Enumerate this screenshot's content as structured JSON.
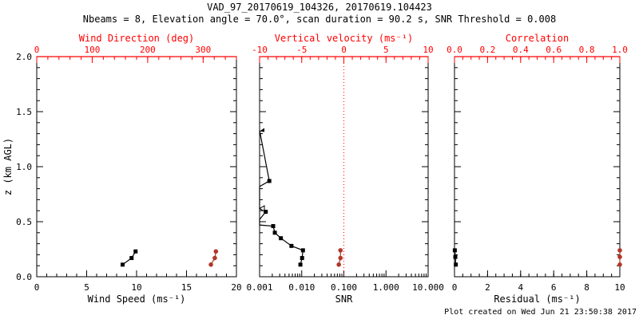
{
  "header": {
    "title": "VAD_97_20170619_104326, 20170619.104423",
    "subtitle": "Nbeams = 8, Elevation angle = 70.0°, scan duration = 90.2 s, SNR Threshold = 0.008"
  },
  "footer": {
    "created": "Plot created on Wed Jun 21 23:50:38 2017"
  },
  "colors": {
    "axis_red": "#ff0000",
    "series_red": "#b0372a",
    "series_black": "#000000",
    "background": "#ffffff"
  },
  "chart_data": [
    {
      "type": "line",
      "id": "wind-panel",
      "y_axis": {
        "label": "z (km AGL)",
        "range": [
          0,
          2
        ],
        "major": [
          0,
          0.5,
          1,
          1.5,
          2
        ],
        "labels": [
          "0.0",
          "0.5",
          "1.0",
          "1.5",
          "2.0"
        ],
        "minor_step": 0.1,
        "show_labels": true
      },
      "bottom_axis": {
        "label": "Wind Speed (ms⁻¹)",
        "range": [
          0,
          20
        ],
        "major": [
          0,
          5,
          10,
          15,
          20
        ],
        "labels": [
          "0",
          "5",
          "10",
          "15",
          "20"
        ],
        "minor_step": 1,
        "color": "#000000"
      },
      "top_axis": {
        "label": "Wind Direction (deg)",
        "range": [
          0,
          360
        ],
        "major": [
          0,
          100,
          200,
          300
        ],
        "labels": [
          "0",
          "100",
          "200",
          "300"
        ],
        "minor_step": 20,
        "color": "#ff0000"
      },
      "series": [
        {
          "name": "wind-speed",
          "axis": "bottom",
          "color": "#000000",
          "marker": "square",
          "points": [
            {
              "v": 8.6,
              "z": 0.11
            },
            {
              "v": 9.5,
              "z": 0.17
            },
            {
              "v": 9.9,
              "z": 0.23
            }
          ]
        },
        {
          "name": "wind-direction",
          "axis": "top",
          "color": "#b0372a",
          "marker": "circle",
          "points": [
            {
              "v": 314,
              "z": 0.11
            },
            {
              "v": 321,
              "z": 0.17
            },
            {
              "v": 323,
              "z": 0.23
            }
          ]
        }
      ]
    },
    {
      "type": "line",
      "id": "snr-panel",
      "y_axis": {
        "label": "",
        "range": [
          0,
          2
        ],
        "major": [
          0,
          0.5,
          1,
          1.5,
          2
        ],
        "labels": [],
        "minor_step": 0.1,
        "show_labels": false
      },
      "bottom_axis": {
        "label": "SNR",
        "log": true,
        "range": [
          0.001,
          10
        ],
        "major": [
          0.001,
          0.01,
          0.1,
          1,
          10
        ],
        "labels": [
          "0.001",
          "0.010",
          "0.100",
          "1.000",
          "10.000"
        ],
        "color": "#000000"
      },
      "top_axis": {
        "label": "Vertical velocity (ms⁻¹)",
        "range": [
          -10,
          10
        ],
        "major": [
          -10,
          -5,
          0,
          5,
          10
        ],
        "labels": [
          "-10",
          "-5",
          "0",
          "5",
          "10"
        ],
        "minor_step": 1,
        "color": "#ff0000"
      },
      "refline": {
        "axis": "top",
        "value": 0,
        "color": "#ff0000",
        "style": "dotted"
      },
      "series": [
        {
          "name": "snr-profile",
          "axis": "bottom",
          "color": "#000000",
          "marker": "mixed",
          "points": [
            {
              "v": 0.001,
              "z": 1.33,
              "m": "tri"
            },
            {
              "v": 0.0017,
              "z": 0.87,
              "m": "square"
            },
            {
              "v": 0.001,
              "z": 0.82,
              "m": "none"
            },
            {
              "v": 0.001,
              "z": 0.62,
              "m": "otri"
            },
            {
              "v": 0.0014,
              "z": 0.59,
              "m": "square"
            },
            {
              "v": 0.001,
              "z": 0.52,
              "m": "none"
            },
            {
              "v": 0.001,
              "z": 0.47,
              "m": "none"
            },
            {
              "v": 0.0021,
              "z": 0.46,
              "m": "square"
            },
            {
              "v": 0.0023,
              "z": 0.4,
              "m": "square"
            },
            {
              "v": 0.0032,
              "z": 0.35,
              "m": "square"
            },
            {
              "v": 0.0057,
              "z": 0.28,
              "m": "square"
            },
            {
              "v": 0.0107,
              "z": 0.24,
              "m": "square"
            },
            {
              "v": 0.0102,
              "z": 0.17,
              "m": "square"
            },
            {
              "v": 0.0093,
              "z": 0.11,
              "m": "square"
            }
          ]
        },
        {
          "name": "vertical-velocity",
          "axis": "top",
          "color": "#b0372a",
          "marker": "circle",
          "points": [
            {
              "v": -0.4,
              "z": 0.24
            },
            {
              "v": -0.4,
              "z": 0.17
            },
            {
              "v": -0.6,
              "z": 0.11
            }
          ]
        }
      ]
    },
    {
      "type": "line",
      "id": "residual-panel",
      "y_axis": {
        "label": "",
        "range": [
          0,
          2
        ],
        "major": [
          0,
          0.5,
          1,
          1.5,
          2
        ],
        "labels": [],
        "minor_step": 0.1,
        "show_labels": false
      },
      "bottom_axis": {
        "label": "Residual (ms⁻¹)",
        "range": [
          0,
          10
        ],
        "major": [
          0,
          2,
          4,
          6,
          8,
          10
        ],
        "labels": [
          "0",
          "2",
          "4",
          "6",
          "8",
          "10"
        ],
        "minor_step": 0.5,
        "color": "#000000"
      },
      "top_axis": {
        "label": "Correlation",
        "range": [
          0,
          1
        ],
        "major": [
          0,
          0.2,
          0.4,
          0.6,
          0.8,
          1
        ],
        "labels": [
          "0.0",
          "0.2",
          "0.4",
          "0.6",
          "0.8",
          "1.0"
        ],
        "minor_step": 0.05,
        "color": "#ff0000"
      },
      "series": [
        {
          "name": "residual",
          "axis": "bottom",
          "color": "#000000",
          "marker": "square",
          "points": [
            {
              "v": 0.08,
              "z": 0.11
            },
            {
              "v": 0.05,
              "z": 0.18
            },
            {
              "v": 0.02,
              "z": 0.24
            }
          ]
        },
        {
          "name": "correlation",
          "axis": "top",
          "color": "#b0372a",
          "marker": "circle",
          "points": [
            {
              "v": 1.0,
              "z": 0.11
            },
            {
              "v": 1.0,
              "z": 0.18
            },
            {
              "v": 1.0,
              "z": 0.24
            }
          ]
        }
      ]
    }
  ]
}
